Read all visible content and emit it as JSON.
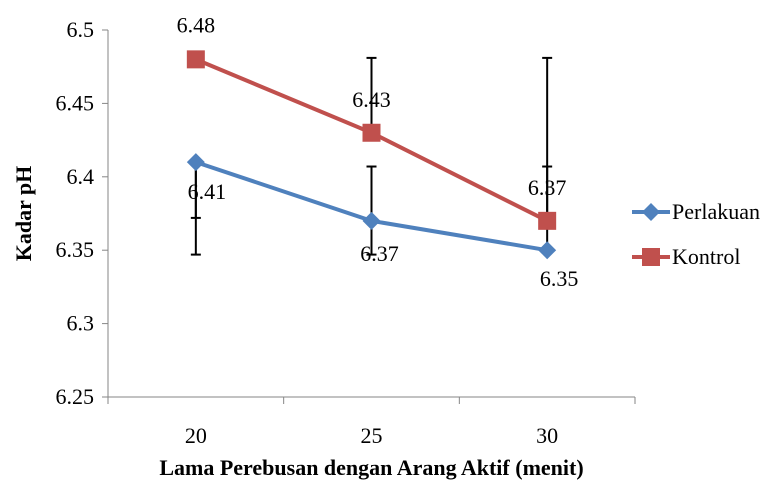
{
  "chart_data": {
    "type": "line",
    "title": "",
    "xlabel": "Lama Perebusan dengan Arang Aktif (menit)",
    "ylabel": "Kadar pH",
    "categories": [
      "20",
      "25",
      "30"
    ],
    "ylim": [
      6.25,
      6.5
    ],
    "yticks": [
      "6.25",
      "6.3",
      "6.35",
      "6.4",
      "6.45",
      "6.5"
    ],
    "grid": false,
    "legend_position": "right",
    "series": [
      {
        "name": "Perlakuan",
        "color": "#4F81BD",
        "marker": "diamond",
        "values": [
          6.41,
          6.37,
          6.35
        ],
        "labels": [
          "6.41",
          "6.37",
          "6.35"
        ],
        "error_low": [
          6.347,
          6.347,
          null
        ],
        "error_high": [
          6.372,
          6.407,
          6.407
        ]
      },
      {
        "name": "Kontrol",
        "color": "#C0504D",
        "marker": "square",
        "values": [
          6.48,
          6.43,
          6.37
        ],
        "labels": [
          "6.48",
          "6.43",
          "6.37"
        ],
        "error_low": [
          null,
          null,
          null
        ],
        "error_high": [
          null,
          6.481,
          6.481
        ]
      }
    ]
  }
}
